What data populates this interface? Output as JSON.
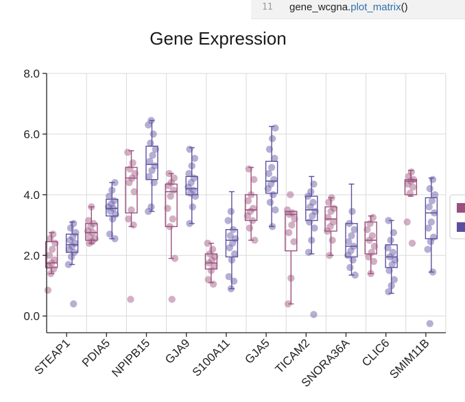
{
  "code_cell": {
    "line_number": "11",
    "object": "gene_wcgna",
    "dot": ".",
    "function": "plot_matrix",
    "parens": "()"
  },
  "chart_data": {
    "type": "box",
    "title": "Gene Expression",
    "xlabel": "",
    "ylabel": "",
    "ylim": [
      -0.55,
      8.0
    ],
    "yticks": [
      "0.0",
      "2.0",
      "4.0",
      "6.0",
      "8.0"
    ],
    "grid": true,
    "legend_placement": "right (clipped)",
    "categories": [
      "STEAP1",
      "PDIA5",
      "NPIPB15",
      "GJA9",
      "S100A11",
      "GJA5",
      "TICAM2",
      "SNORA36A",
      "CLIC6",
      "SMIM11B"
    ],
    "series": [
      {
        "color": "#9b4f7c",
        "boxes": [
          {
            "min": 1.4,
            "q1": 1.6,
            "median": 1.75,
            "q3": 2.45,
            "max": 2.75
          },
          {
            "min": 2.4,
            "q1": 2.5,
            "median": 2.75,
            "q3": 3.05,
            "max": 3.6
          },
          {
            "min": 2.95,
            "q1": 3.4,
            "median": 4.55,
            "q3": 4.9,
            "max": 5.45
          },
          {
            "min": 1.9,
            "q1": 2.95,
            "median": 4.1,
            "q3": 4.35,
            "max": 4.7
          },
          {
            "min": 1.1,
            "q1": 1.55,
            "median": 1.75,
            "q3": 2.05,
            "max": 2.4
          },
          {
            "min": 2.5,
            "q1": 3.15,
            "median": 3.5,
            "q3": 4.0,
            "max": 4.9
          },
          {
            "min": 0.4,
            "q1": 2.15,
            "median": 3.35,
            "q3": 3.45,
            "max": 3.45
          },
          {
            "min": 2.0,
            "q1": 2.8,
            "median": 3.2,
            "q3": 3.6,
            "max": 3.9
          },
          {
            "min": 1.4,
            "q1": 2.05,
            "median": 2.5,
            "q3": 3.1,
            "max": 3.3
          },
          {
            "min": 3.95,
            "q1": 4.0,
            "median": 4.45,
            "q3": 4.5,
            "max": 4.8
          }
        ],
        "points": [
          [
            0.85,
            1.4,
            1.55,
            1.65,
            1.75,
            1.85,
            2.0,
            2.2,
            2.4,
            2.55,
            2.7
          ],
          [
            2.4,
            2.45,
            2.55,
            2.6,
            2.75,
            2.8,
            2.95,
            3.05,
            3.15,
            3.6
          ],
          [
            0.55,
            3.0,
            3.2,
            3.5,
            4.1,
            4.4,
            4.55,
            4.7,
            4.85,
            5.05,
            5.4
          ],
          [
            0.55,
            1.9,
            2.95,
            3.2,
            3.55,
            3.95,
            4.15,
            4.3,
            4.4,
            4.55,
            4.7
          ],
          [
            1.05,
            1.2,
            1.5,
            1.65,
            1.75,
            1.85,
            1.95,
            2.05,
            2.2,
            2.4
          ],
          [
            2.5,
            2.9,
            3.15,
            3.3,
            3.45,
            3.55,
            3.8,
            4.0,
            4.5,
            4.85
          ],
          [
            0.4,
            1.25,
            2.45,
            2.75,
            3.0,
            3.2,
            3.35,
            3.4,
            3.5,
            4.0
          ],
          [
            2.0,
            2.5,
            2.8,
            2.95,
            3.1,
            3.25,
            3.45,
            3.55,
            3.75,
            3.9
          ],
          [
            1.4,
            1.8,
            1.95,
            2.1,
            2.3,
            2.5,
            2.65,
            2.85,
            3.05,
            3.25
          ],
          [
            2.4,
            3.1,
            4.05,
            4.25,
            4.35,
            4.45,
            4.5,
            4.6,
            4.75
          ]
        ]
      },
      {
        "color": "#5a4f9e",
        "boxes": [
          {
            "min": 1.7,
            "q1": 2.1,
            "median": 2.35,
            "q3": 2.7,
            "max": 3.1
          },
          {
            "min": 2.55,
            "q1": 3.3,
            "median": 3.55,
            "q3": 3.85,
            "max": 4.4
          },
          {
            "min": 3.45,
            "q1": 4.5,
            "median": 5.0,
            "q3": 5.6,
            "max": 6.45
          },
          {
            "min": 3.05,
            "q1": 4.0,
            "median": 4.2,
            "q3": 4.6,
            "max": 5.55
          },
          {
            "min": 0.9,
            "q1": 1.95,
            "median": 2.5,
            "q3": 2.85,
            "max": 4.1
          },
          {
            "min": 2.95,
            "q1": 4.05,
            "median": 4.45,
            "q3": 5.1,
            "max": 6.25
          },
          {
            "min": 2.05,
            "q1": 3.15,
            "median": 3.5,
            "q3": 3.95,
            "max": 4.6
          },
          {
            "min": 1.35,
            "q1": 1.95,
            "median": 2.3,
            "q3": 3.05,
            "max": 4.35
          },
          {
            "min": 0.75,
            "q1": 1.6,
            "median": 1.95,
            "q3": 2.35,
            "max": 3.15
          },
          {
            "min": 1.45,
            "q1": 2.55,
            "median": 3.4,
            "q3": 3.9,
            "max": 4.55
          }
        ],
        "points": [
          [
            0.4,
            1.7,
            1.95,
            2.1,
            2.2,
            2.3,
            2.4,
            2.5,
            2.6,
            2.75,
            2.9,
            3.05
          ],
          [
            2.55,
            2.7,
            3.2,
            3.35,
            3.45,
            3.55,
            3.6,
            3.7,
            3.8,
            3.95,
            4.15,
            4.4
          ],
          [
            3.45,
            3.6,
            4.4,
            4.6,
            4.8,
            4.95,
            5.1,
            5.3,
            5.5,
            5.7,
            6.0,
            6.3,
            6.45
          ],
          [
            3.05,
            3.6,
            3.95,
            4.05,
            4.15,
            4.25,
            4.4,
            4.55,
            4.7,
            4.95,
            5.2,
            5.5
          ],
          [
            0.9,
            1.15,
            1.3,
            1.85,
            2.05,
            2.25,
            2.4,
            2.55,
            2.65,
            2.85,
            3.15,
            3.45
          ],
          [
            2.95,
            3.5,
            3.75,
            4.0,
            4.2,
            4.35,
            4.5,
            4.7,
            4.9,
            5.2,
            5.5,
            5.85,
            6.2
          ],
          [
            0.05,
            2.1,
            2.5,
            2.9,
            3.1,
            3.3,
            3.45,
            3.6,
            3.75,
            3.95,
            4.1,
            4.35
          ],
          [
            1.35,
            1.6,
            1.85,
            2.0,
            2.15,
            2.3,
            2.45,
            2.65,
            2.85,
            3.05,
            3.45
          ],
          [
            0.8,
            1.0,
            1.2,
            1.5,
            1.7,
            1.85,
            1.95,
            2.1,
            2.25,
            2.5,
            2.75,
            3.15
          ],
          [
            -0.25,
            1.45,
            2.2,
            2.45,
            2.6,
            2.9,
            3.1,
            3.4,
            3.6,
            3.8,
            4.0,
            4.2,
            4.5
          ]
        ]
      }
    ]
  }
}
